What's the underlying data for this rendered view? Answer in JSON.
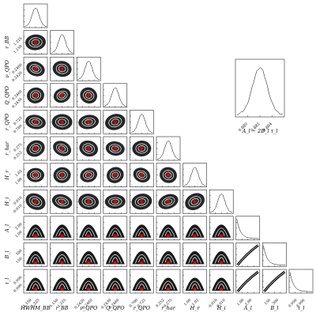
{
  "chart_data": {
    "type": "corner",
    "parameters": [
      {
        "key": "hwhm_bb",
        "label": "HWHM_BB",
        "ticks": [
          "1.150",
          "1.225"
        ],
        "shape": "ellipse"
      },
      {
        "key": "r_bb",
        "label": "r_BB",
        "ticks": [
          "1.150",
          "1.225"
        ],
        "shape": "ellipse"
      },
      {
        "key": "nu_qpo",
        "label": "ν_QPO",
        "ticks": [
          "0.2420",
          "0.2460"
        ],
        "shape": "ellipse"
      },
      {
        "key": "q_qpo",
        "label": "Q_QPO",
        "ticks": [
          "0.2430",
          "0.2460"
        ],
        "shape": "ellipse"
      },
      {
        "key": "r_qpo",
        "label": "r_QPO",
        "ticks": [
          "0.700",
          "0.725"
        ],
        "shape": "ellipse"
      },
      {
        "key": "r_har",
        "label": "r_har",
        "ticks": [
          "0.252",
          "0.275"
        ],
        "shape": "ellipse"
      },
      {
        "key": "h_r",
        "label": "H_r",
        "ticks": [
          "1.00",
          "1.02"
        ],
        "shape": "ellipse"
      },
      {
        "key": "h_i",
        "label": "H_i",
        "ticks": [
          "-0.010",
          "0.010"
        ],
        "shape": "ellipse"
      },
      {
        "key": "a_l",
        "label": "A_l",
        "ticks": [
          "1.00",
          "2.00"
        ],
        "shape": "skewed"
      },
      {
        "key": "b_l",
        "label": "B_l",
        "ticks": [
          "150",
          "300"
        ],
        "shape": "skewed"
      },
      {
        "key": "tau_l",
        "label": "τ_l",
        "ticks": [
          "0.990",
          "0.996"
        ],
        "shape": "skewed"
      }
    ],
    "inset": {
      "label": "A_l − 2B_l τ_l",
      "ticks": [
        "0.880",
        "0.882",
        "0.884"
      ]
    }
  }
}
